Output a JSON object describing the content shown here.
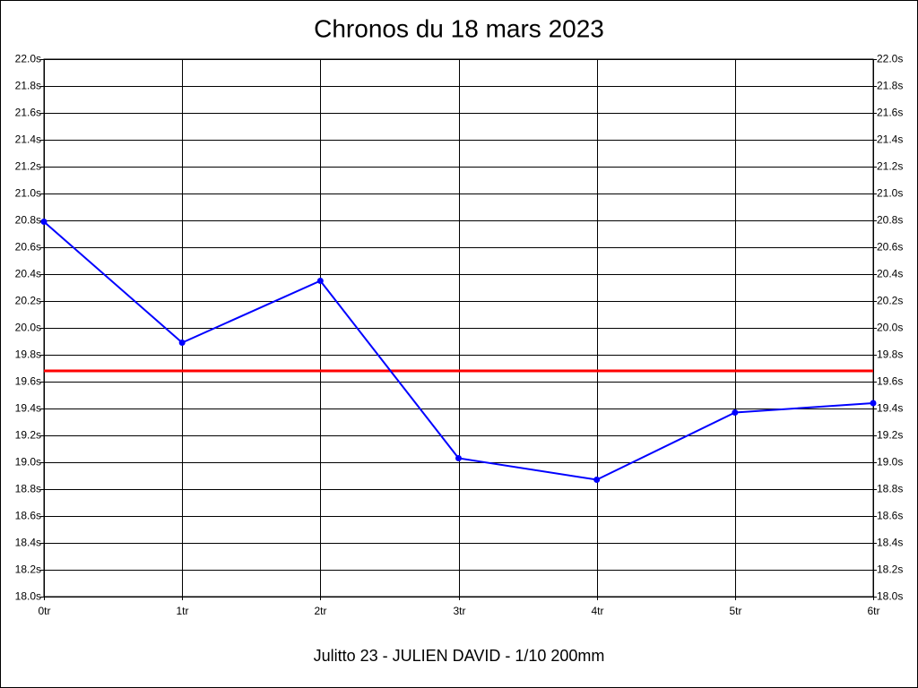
{
  "chart_data": {
    "type": "line",
    "title": "Chronos du 18 mars 2023",
    "subtitle": "Julitto 23 - JULIEN DAVID - 1/10 200mm",
    "x": [
      0,
      1,
      2,
      3,
      4,
      5,
      6
    ],
    "values": [
      20.79,
      19.89,
      20.35,
      19.03,
      18.87,
      19.37,
      19.44
    ],
    "color": "#0000ff",
    "xlim": [
      0,
      6
    ],
    "xticks": [
      {
        "value": 0,
        "label": "0tr"
      },
      {
        "value": 1,
        "label": "1tr"
      },
      {
        "value": 2,
        "label": "2tr"
      },
      {
        "value": 3,
        "label": "3tr"
      },
      {
        "value": 4,
        "label": "4tr"
      },
      {
        "value": 5,
        "label": "5tr"
      },
      {
        "value": 6,
        "label": "6tr"
      }
    ],
    "ylim": [
      18,
      22
    ],
    "yticks": [
      {
        "value": 18,
        "label": "18.0s"
      },
      {
        "value": 18.2,
        "label": "18.2s"
      },
      {
        "value": 18.4,
        "label": "18.4s"
      },
      {
        "value": 18.6,
        "label": "18.6s"
      },
      {
        "value": 18.8,
        "label": "18.8s"
      },
      {
        "value": 19,
        "label": "19.0s"
      },
      {
        "value": 19.2,
        "label": "19.2s"
      },
      {
        "value": 19.4,
        "label": "19.4s"
      },
      {
        "value": 19.6,
        "label": "19.6s"
      },
      {
        "value": 19.8,
        "label": "19.8s"
      },
      {
        "value": 20,
        "label": "20.0s"
      },
      {
        "value": 20.2,
        "label": "20.2s"
      },
      {
        "value": 20.4,
        "label": "20.4s"
      },
      {
        "value": 20.6,
        "label": "20.6s"
      },
      {
        "value": 20.8,
        "label": "20.8s"
      },
      {
        "value": 21,
        "label": "21.0s"
      },
      {
        "value": 21.2,
        "label": "21.2s"
      },
      {
        "value": 21.4,
        "label": "21.4s"
      },
      {
        "value": 21.6,
        "label": "21.6s"
      },
      {
        "value": 21.8,
        "label": "21.8s"
      },
      {
        "value": 22,
        "label": "22.0s"
      }
    ],
    "y2lim": [
      18,
      22
    ],
    "y2ticks": [
      {
        "value": 18,
        "label": "18.0s"
      },
      {
        "value": 18.2,
        "label": "18.2s"
      },
      {
        "value": 18.4,
        "label": "18.4s"
      },
      {
        "value": 18.6,
        "label": "18.6s"
      },
      {
        "value": 18.8,
        "label": "18.8s"
      },
      {
        "value": 19,
        "label": "19.0s"
      },
      {
        "value": 19.2,
        "label": "19.2s"
      },
      {
        "value": 19.4,
        "label": "19.4s"
      },
      {
        "value": 19.6,
        "label": "19.6s"
      },
      {
        "value": 19.8,
        "label": "19.8s"
      },
      {
        "value": 20,
        "label": "20.0s"
      },
      {
        "value": 20.2,
        "label": "20.2s"
      },
      {
        "value": 20.4,
        "label": "20.4s"
      },
      {
        "value": 20.6,
        "label": "20.6s"
      },
      {
        "value": 20.8,
        "label": "20.8s"
      },
      {
        "value": 21,
        "label": "21.0s"
      },
      {
        "value": 21.2,
        "label": "21.2s"
      },
      {
        "value": 21.4,
        "label": "21.4s"
      },
      {
        "value": 21.6,
        "label": "21.6s"
      },
      {
        "value": 21.8,
        "label": "21.8s"
      },
      {
        "value": 22,
        "label": "22.0s"
      }
    ],
    "reference_line": {
      "value": 19.68,
      "color": "#ff0000"
    },
    "grid": true
  }
}
